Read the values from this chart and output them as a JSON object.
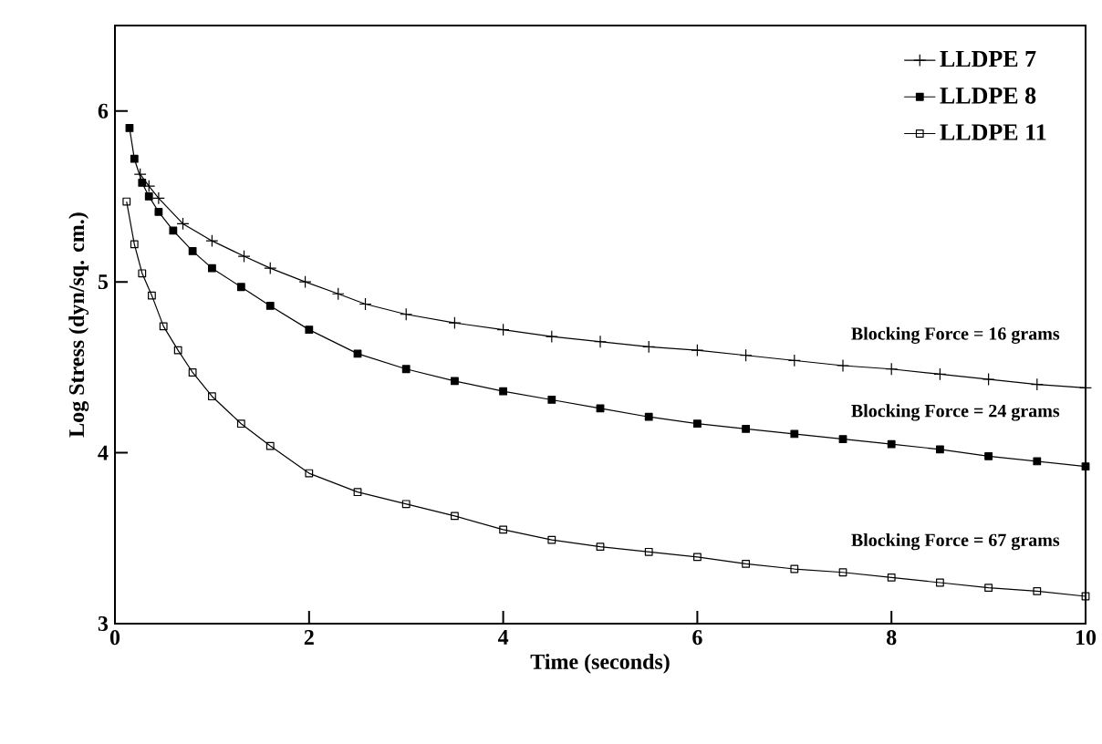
{
  "chart_data": {
    "type": "line",
    "xlabel": "Time (seconds)",
    "ylabel": "Log Stress (dyn/sq. cm.)",
    "xlim": [
      0,
      10
    ],
    "ylim": [
      3,
      6.5
    ],
    "xticks": [
      0,
      2,
      4,
      6,
      8,
      10
    ],
    "yticks": [
      3,
      4,
      5,
      6
    ],
    "grid": false,
    "legend": "top right",
    "line_style": "solid",
    "series": [
      {
        "name": "LLDPE 7",
        "color": "#000000",
        "marker": "cross",
        "x": [
          0.26,
          0.35,
          0.45,
          0.7,
          1,
          1.33,
          1.6,
          1.96,
          2.3,
          2.58,
          3,
          3.5,
          4,
          4.5,
          5,
          5.5,
          6,
          6.5,
          7,
          7.5,
          8,
          8.5,
          9,
          9.5,
          10
        ],
        "values": [
          5.63,
          5.56,
          5.49,
          5.34,
          5.24,
          5.15,
          5.08,
          5.0,
          4.93,
          4.87,
          4.81,
          4.76,
          4.72,
          4.68,
          4.65,
          4.62,
          4.6,
          4.57,
          4.54,
          4.51,
          4.49,
          4.46,
          4.43,
          4.4,
          4.38
        ]
      },
      {
        "name": "LLDPE 8",
        "color": "#000000",
        "marker": "square",
        "x": [
          0.15,
          0.2,
          0.28,
          0.35,
          0.45,
          0.6,
          0.8,
          1,
          1.3,
          1.6,
          2,
          2.5,
          3,
          3.5,
          4,
          4.5,
          5,
          5.5,
          6,
          6.5,
          7,
          7.5,
          8,
          8.5,
          9,
          9.5,
          10
        ],
        "values": [
          5.9,
          5.72,
          5.58,
          5.5,
          5.41,
          5.3,
          5.18,
          5.08,
          4.97,
          4.86,
          4.72,
          4.58,
          4.49,
          4.42,
          4.36,
          4.31,
          4.26,
          4.21,
          4.17,
          4.14,
          4.11,
          4.08,
          4.05,
          4.02,
          3.98,
          3.95,
          3.92
        ]
      },
      {
        "name": "LLDPE 11",
        "color": "#000000",
        "marker": "square",
        "x": [
          0.12,
          0.2,
          0.28,
          0.38,
          0.5,
          0.65,
          0.8,
          1,
          1.3,
          1.6,
          2,
          2.5,
          3,
          3.5,
          4,
          4.5,
          5,
          5.5,
          6,
          6.5,
          7,
          7.5,
          8,
          8.5,
          9,
          9.5,
          10
        ],
        "values": [
          5.47,
          5.22,
          5.05,
          4.92,
          4.74,
          4.6,
          4.47,
          4.33,
          4.17,
          4.04,
          3.88,
          3.77,
          3.7,
          3.63,
          3.55,
          3.49,
          3.45,
          3.42,
          3.39,
          3.35,
          3.32,
          3.3,
          3.27,
          3.24,
          3.21,
          3.19,
          3.16
        ]
      }
    ],
    "annotations": [
      "Blocking Force = 16 grams",
      "Blocking Force = 24 grams",
      "Blocking Force = 67 grams"
    ]
  }
}
